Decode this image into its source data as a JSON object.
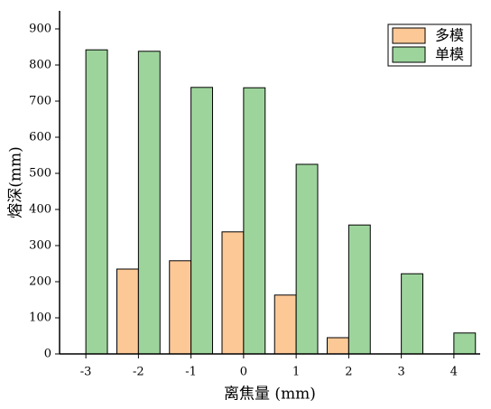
{
  "chart_data": {
    "type": "bar",
    "x_label": "离焦量 (mm)",
    "y_label": "熔深(mm)",
    "categories": [
      "-3",
      "-2",
      "-1",
      "0",
      "1",
      "2",
      "3",
      "4"
    ],
    "series": [
      {
        "name": "多模",
        "color": "#fcc896",
        "values": [
          null,
          235,
          258,
          338,
          163,
          45,
          null,
          null
        ]
      },
      {
        "name": "单模",
        "color": "#9dd49c",
        "values": [
          842,
          838,
          738,
          737,
          525,
          357,
          222,
          58
        ]
      }
    ],
    "ylim": [
      0,
      950
    ],
    "yticks": [
      0,
      100,
      200,
      300,
      400,
      500,
      600,
      700,
      800,
      900
    ],
    "legend": "upper-right"
  }
}
